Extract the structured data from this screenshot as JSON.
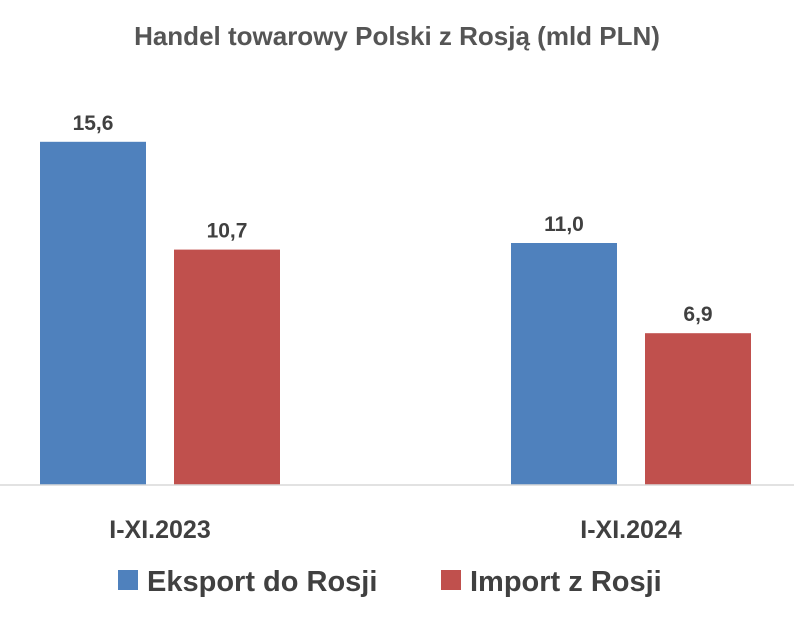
{
  "chart_data": {
    "type": "bar",
    "title": "Handel towarowy Polski z Rosją (mld PLN)",
    "categories": [
      "I-XI.2023",
      "I-XI.2024"
    ],
    "series": [
      {
        "name": "Eksport do Rosji",
        "color": "#4f81bd",
        "values": [
          15.6,
          11.0
        ],
        "labels": [
          "15,6",
          "11,0"
        ]
      },
      {
        "name": "Import z Rosji",
        "color": "#c0504d",
        "values": [
          10.7,
          6.9
        ],
        "labels": [
          "10,7",
          "6,9"
        ]
      }
    ],
    "ylim": [
      0,
      16.5
    ],
    "grid": false,
    "legend": "bottom"
  }
}
